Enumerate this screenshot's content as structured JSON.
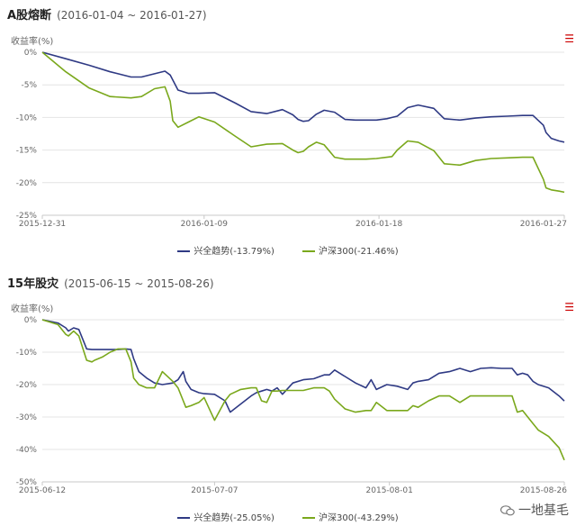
{
  "colors": {
    "series1": "#2f3a84",
    "series2": "#7aa81c",
    "grid": "#e4e4e4",
    "axis": "#c8c8c8"
  },
  "watermark": {
    "text": "一地基毛",
    "icon": "wechat-icon"
  },
  "chart_data": [
    {
      "type": "line",
      "title": "A股熔断",
      "subtitle": "(2016-01-04 ~ 2016-01-27)",
      "ylabel": "收益率(%)",
      "ylim": [
        -25,
        0
      ],
      "yticks": [
        0,
        -5,
        -10,
        -15,
        -20,
        -25
      ],
      "ytick_labels": [
        "0%",
        "-5%",
        "-10%",
        "-15%",
        "-20%",
        "-25%"
      ],
      "xlim": [
        0,
        1
      ],
      "xticks": [
        0,
        0.31,
        0.645,
        1
      ],
      "xtick_labels": [
        "2015-12-31",
        "2016-01-09",
        "2016-01-18",
        "2016-01-27"
      ],
      "grid": true,
      "legend_position": "bottom",
      "series": [
        {
          "name": "兴全趋势(-13.79%)",
          "x": [
            0,
            0.045,
            0.09,
            0.13,
            0.17,
            0.19,
            0.215,
            0.235,
            0.245,
            0.26,
            0.28,
            0.3,
            0.33,
            0.37,
            0.4,
            0.43,
            0.46,
            0.48,
            0.49,
            0.5,
            0.51,
            0.525,
            0.54,
            0.56,
            0.58,
            0.6,
            0.62,
            0.64,
            0.66,
            0.67,
            0.68,
            0.7,
            0.72,
            0.75,
            0.77,
            0.8,
            0.83,
            0.86,
            0.89,
            0.92,
            0.94,
            0.96,
            0.965,
            0.975,
            0.99,
            1.0
          ],
          "y": [
            0,
            -1.0,
            -2.0,
            -3.0,
            -3.8,
            -3.8,
            -3.3,
            -2.9,
            -3.5,
            -5.8,
            -6.3,
            -6.3,
            -6.2,
            -7.8,
            -9.1,
            -9.4,
            -8.8,
            -9.6,
            -10.3,
            -10.6,
            -10.5,
            -9.5,
            -8.9,
            -9.2,
            -10.3,
            -10.4,
            -10.4,
            -10.4,
            -10.2,
            -10.0,
            -9.8,
            -8.5,
            -8.1,
            -8.6,
            -10.2,
            -10.4,
            -10.1,
            -9.9,
            -9.8,
            -9.7,
            -9.7,
            -11.2,
            -12.3,
            -13.2,
            -13.6,
            -13.79
          ]
        },
        {
          "name": "沪深300(-21.46%)",
          "x": [
            0,
            0.045,
            0.09,
            0.13,
            0.17,
            0.19,
            0.215,
            0.235,
            0.245,
            0.25,
            0.26,
            0.28,
            0.3,
            0.33,
            0.37,
            0.4,
            0.43,
            0.46,
            0.48,
            0.49,
            0.5,
            0.51,
            0.525,
            0.54,
            0.56,
            0.58,
            0.6,
            0.62,
            0.64,
            0.66,
            0.67,
            0.68,
            0.7,
            0.72,
            0.75,
            0.77,
            0.8,
            0.83,
            0.86,
            0.89,
            0.92,
            0.94,
            0.96,
            0.965,
            0.975,
            0.99,
            1.0
          ],
          "y": [
            0,
            -3.0,
            -5.5,
            -6.8,
            -7.0,
            -6.8,
            -5.6,
            -5.3,
            -7.5,
            -10.5,
            -11.5,
            -10.7,
            -9.9,
            -10.7,
            -12.9,
            -14.5,
            -14.1,
            -14.0,
            -15.0,
            -15.4,
            -15.2,
            -14.5,
            -13.8,
            -14.2,
            -16.1,
            -16.4,
            -16.4,
            -16.4,
            -16.3,
            -16.1,
            -16.0,
            -15.0,
            -13.6,
            -13.8,
            -15.1,
            -17.1,
            -17.3,
            -16.6,
            -16.3,
            -16.2,
            -16.1,
            -16.1,
            -19.5,
            -20.8,
            -21.1,
            -21.3,
            -21.46
          ]
        }
      ]
    },
    {
      "type": "line",
      "title": "15年股灾",
      "subtitle": "(2015-06-15 ~ 2015-08-26)",
      "ylabel": "收益率(%)",
      "ylim": [
        -50,
        0
      ],
      "yticks": [
        0,
        -10,
        -20,
        -30,
        -40,
        -50
      ],
      "ytick_labels": [
        "0%",
        "-10%",
        "-20%",
        "-30%",
        "-40%",
        "-50%"
      ],
      "xlim": [
        0,
        1
      ],
      "xticks": [
        0,
        0.33,
        0.665,
        1
      ],
      "xtick_labels": [
        "2015-06-12",
        "2015-07-07",
        "2015-08-01",
        "2015-08-26"
      ],
      "grid": true,
      "legend_position": "bottom",
      "series": [
        {
          "name": "兴全趋势(-25.05%)",
          "x": [
            0,
            0.03,
            0.045,
            0.05,
            0.06,
            0.07,
            0.085,
            0.095,
            0.1,
            0.115,
            0.13,
            0.145,
            0.16,
            0.17,
            0.175,
            0.185,
            0.2,
            0.215,
            0.23,
            0.25,
            0.26,
            0.27,
            0.275,
            0.285,
            0.3,
            0.31,
            0.33,
            0.35,
            0.36,
            0.38,
            0.4,
            0.41,
            0.42,
            0.43,
            0.44,
            0.45,
            0.46,
            0.48,
            0.5,
            0.52,
            0.54,
            0.55,
            0.56,
            0.58,
            0.6,
            0.62,
            0.63,
            0.64,
            0.66,
            0.68,
            0.7,
            0.71,
            0.72,
            0.74,
            0.76,
            0.78,
            0.8,
            0.82,
            0.84,
            0.86,
            0.88,
            0.9,
            0.91,
            0.92,
            0.93,
            0.94,
            0.95,
            0.97,
            0.99,
            1.0
          ],
          "y": [
            0,
            -1.0,
            -2.5,
            -3.5,
            -2.5,
            -3.0,
            -9.0,
            -9.2,
            -9.2,
            -9.2,
            -9.2,
            -9.2,
            -9.0,
            -9.2,
            -12.0,
            -16.0,
            -18.0,
            -19.5,
            -20.0,
            -19.5,
            -18.5,
            -16.0,
            -19.0,
            -21.5,
            -22.5,
            -22.8,
            -23.0,
            -25.0,
            -28.5,
            -26.0,
            -23.5,
            -22.5,
            -22.0,
            -21.5,
            -22.0,
            -21.0,
            -23.0,
            -19.5,
            -18.5,
            -18.2,
            -17.0,
            -17.0,
            -15.5,
            -17.5,
            -19.5,
            -21.0,
            -18.5,
            -21.5,
            -20.0,
            -20.5,
            -21.5,
            -19.5,
            -19.0,
            -18.5,
            -16.5,
            -16.0,
            -15.0,
            -16.0,
            -15.0,
            -14.8,
            -15.0,
            -15.0,
            -17.0,
            -16.5,
            -17.0,
            -19.0,
            -20.0,
            -21.0,
            -23.5,
            -25.05
          ]
        },
        {
          "name": "沪深300(-43.29%)",
          "x": [
            0,
            0.03,
            0.045,
            0.05,
            0.06,
            0.07,
            0.085,
            0.095,
            0.1,
            0.115,
            0.13,
            0.145,
            0.16,
            0.17,
            0.175,
            0.185,
            0.2,
            0.215,
            0.23,
            0.25,
            0.26,
            0.27,
            0.275,
            0.285,
            0.3,
            0.31,
            0.33,
            0.35,
            0.36,
            0.38,
            0.4,
            0.41,
            0.42,
            0.43,
            0.44,
            0.45,
            0.46,
            0.48,
            0.5,
            0.52,
            0.54,
            0.55,
            0.56,
            0.58,
            0.6,
            0.62,
            0.63,
            0.64,
            0.66,
            0.68,
            0.7,
            0.71,
            0.72,
            0.74,
            0.76,
            0.78,
            0.8,
            0.82,
            0.84,
            0.86,
            0.88,
            0.9,
            0.91,
            0.92,
            0.93,
            0.94,
            0.95,
            0.97,
            0.99,
            1.0
          ],
          "y": [
            0,
            -1.5,
            -4.5,
            -5.0,
            -3.5,
            -5.0,
            -12.5,
            -13.0,
            -12.5,
            -11.5,
            -10.0,
            -9.0,
            -9.0,
            -13.0,
            -18.0,
            -20.0,
            -21.0,
            -21.0,
            -16.0,
            -19.0,
            -21.0,
            -25.0,
            -27.0,
            -26.5,
            -25.5,
            -24.0,
            -31.0,
            -25.0,
            -23.0,
            -21.5,
            -21.0,
            -21.0,
            -25.0,
            -25.5,
            -22.0,
            -22.0,
            -21.8,
            -21.8,
            -21.8,
            -21.0,
            -21.0,
            -22.0,
            -24.5,
            -27.5,
            -28.5,
            -28.0,
            -28.0,
            -25.5,
            -28.0,
            -28.0,
            -28.0,
            -26.5,
            -27.0,
            -25.0,
            -23.5,
            -23.5,
            -25.5,
            -23.5,
            -23.5,
            -23.5,
            -23.5,
            -23.5,
            -28.5,
            -28.0,
            -30.0,
            -32.0,
            -34.0,
            -36.0,
            -39.5,
            -43.29
          ]
        }
      ]
    }
  ]
}
